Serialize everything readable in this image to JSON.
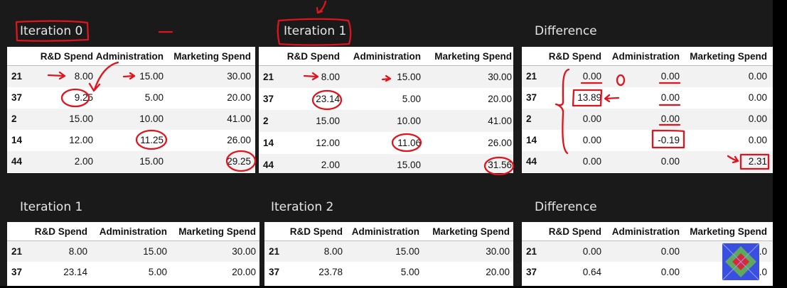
{
  "titles": {
    "top_left": "Iteration 0",
    "top_mid": "Iteration 1",
    "top_right": "Difference",
    "bot_left": "Iteration 1",
    "bot_mid": "Iteration 2",
    "bot_right": "Difference"
  },
  "columns": [
    "R&D Spend",
    "Administration",
    "Marketing Spend"
  ],
  "tables": {
    "iter0": {
      "rows": [
        {
          "idx": "21",
          "vals": [
            "8.00",
            "15.00",
            "30.00"
          ]
        },
        {
          "idx": "37",
          "vals": [
            "9.25",
            "5.00",
            "20.00"
          ]
        },
        {
          "idx": "2",
          "vals": [
            "15.00",
            "10.00",
            "41.00"
          ]
        },
        {
          "idx": "14",
          "vals": [
            "12.00",
            "11.25",
            "26.00"
          ]
        },
        {
          "idx": "44",
          "vals": [
            "2.00",
            "15.00",
            "29.25"
          ]
        }
      ]
    },
    "iter1": {
      "rows": [
        {
          "idx": "21",
          "vals": [
            "8.00",
            "15.00",
            "30.00"
          ]
        },
        {
          "idx": "37",
          "vals": [
            "23.14",
            "5.00",
            "20.00"
          ]
        },
        {
          "idx": "2",
          "vals": [
            "15.00",
            "10.00",
            "41.00"
          ]
        },
        {
          "idx": "14",
          "vals": [
            "12.00",
            "11.06",
            "26.00"
          ]
        },
        {
          "idx": "44",
          "vals": [
            "2.00",
            "15.00",
            "31.56"
          ]
        }
      ]
    },
    "diff1": {
      "rows": [
        {
          "idx": "21",
          "vals": [
            "0.00",
            "0.00",
            "0.00"
          ]
        },
        {
          "idx": "37",
          "vals": [
            "13.89",
            "0.00",
            "0.00"
          ]
        },
        {
          "idx": "2",
          "vals": [
            "0.00",
            "0.00",
            "0.00"
          ]
        },
        {
          "idx": "14",
          "vals": [
            "0.00",
            "-0.19",
            "0.00"
          ]
        },
        {
          "idx": "44",
          "vals": [
            "0.00",
            "0.00",
            "2.31"
          ]
        }
      ]
    },
    "iter1b": {
      "rows": [
        {
          "idx": "21",
          "vals": [
            "8.00",
            "15.00",
            "30.00"
          ]
        },
        {
          "idx": "37",
          "vals": [
            "23.14",
            "5.00",
            "20.00"
          ]
        }
      ]
    },
    "iter2": {
      "rows": [
        {
          "idx": "21",
          "vals": [
            "8.00",
            "15.00",
            "30.00"
          ]
        },
        {
          "idx": "37",
          "vals": [
            "23.78",
            "5.00",
            "20.00"
          ]
        }
      ]
    },
    "diff2": {
      "rows": [
        {
          "idx": "21",
          "vals": [
            "0.00",
            "0.00",
            "0.0"
          ]
        },
        {
          "idx": "37",
          "vals": [
            "0.64",
            "0.00",
            "0.0"
          ]
        }
      ]
    }
  },
  "annotation_marks": {
    "zero_note": "0"
  },
  "colors": {
    "annotation": "#e0141c",
    "background": "#1a1a1a",
    "table": "#ffffff",
    "stripe": "#f2f2f2"
  }
}
